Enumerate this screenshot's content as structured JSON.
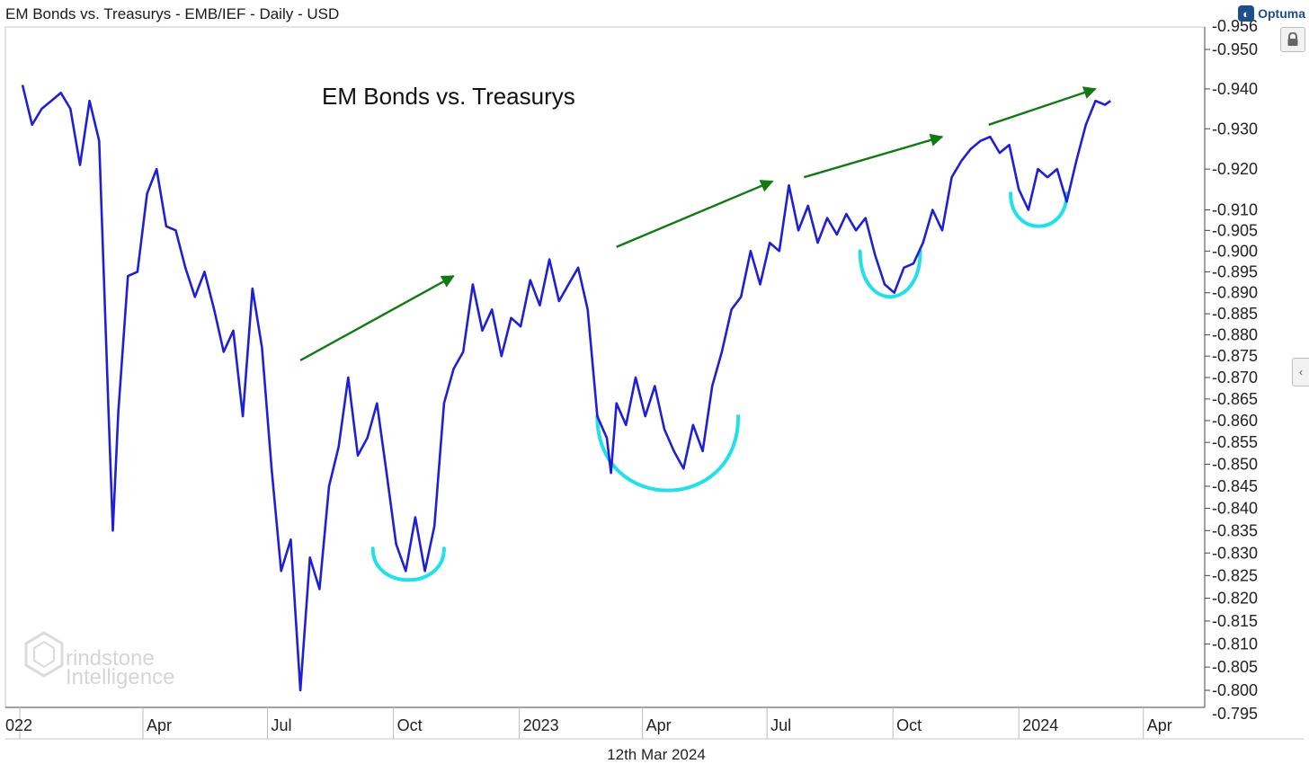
{
  "header": {
    "title": "EM Bonds vs. Treasurys - EMB/IEF - Daily - USD",
    "brand": "Optuma"
  },
  "footer": {
    "date": "12th Mar 2024"
  },
  "watermark": {
    "line1": "rindstone",
    "line2": "Intelligence"
  },
  "colors": {
    "line": "#1f1fd6",
    "arrow": "#137a13",
    "arc": "#22e0ea",
    "axis": "#444444",
    "grid": "#e6e6e6"
  },
  "icons": {
    "lock": "lock-icon",
    "collapse": "chevron-left-icon",
    "brand": "optuma-logo-icon"
  },
  "chart_data": {
    "type": "line",
    "title": "EM Bonds vs. Treasurys",
    "yscale": "log",
    "ylim": [
      0.795,
      0.956
    ],
    "xlim": [
      "2022-01-01",
      "2024-04-30"
    ],
    "x_tick_labels": [
      "022",
      "Apr",
      "Jul",
      "Oct",
      "2023",
      "Apr",
      "Jul",
      "Oct",
      "2024",
      "Apr"
    ],
    "y_tick_labels": [
      "0.956",
      "0.950",
      "0.940",
      "0.930",
      "0.920",
      "0.910",
      "0.905",
      "0.900",
      "0.895",
      "0.890",
      "0.885",
      "0.880",
      "0.875",
      "0.870",
      "0.865",
      "0.860",
      "0.855",
      "0.850",
      "0.845",
      "0.840",
      "0.835",
      "0.830",
      "0.825",
      "0.820",
      "0.815",
      "0.810",
      "0.805",
      "0.800",
      "0.795"
    ],
    "y_ticks": [
      0.95,
      0.94,
      0.93,
      0.92,
      0.91,
      0.905,
      0.9,
      0.895,
      0.89,
      0.885,
      0.88,
      0.875,
      0.87,
      0.865,
      0.86,
      0.855,
      0.85,
      0.845,
      0.84,
      0.835,
      0.83,
      0.825,
      0.82,
      0.815,
      0.81,
      0.805,
      0.8
    ],
    "series": [
      {
        "points": [
          [
            "2022-01-03",
            0.941
          ],
          [
            "2022-01-10",
            0.931
          ],
          [
            "2022-01-17",
            0.935
          ],
          [
            "2022-01-24",
            0.937
          ],
          [
            "2022-01-31",
            0.939
          ],
          [
            "2022-02-07",
            0.935
          ],
          [
            "2022-02-14",
            0.921
          ],
          [
            "2022-02-21",
            0.937
          ],
          [
            "2022-02-28",
            0.927
          ],
          [
            "2022-03-07",
            0.861
          ],
          [
            "2022-03-10",
            0.835
          ],
          [
            "2022-03-14",
            0.862
          ],
          [
            "2022-03-21",
            0.894
          ],
          [
            "2022-03-28",
            0.895
          ],
          [
            "2022-04-04",
            0.914
          ],
          [
            "2022-04-11",
            0.92
          ],
          [
            "2022-04-18",
            0.906
          ],
          [
            "2022-04-25",
            0.905
          ],
          [
            "2022-05-02",
            0.896
          ],
          [
            "2022-05-09",
            0.889
          ],
          [
            "2022-05-16",
            0.895
          ],
          [
            "2022-05-23",
            0.886
          ],
          [
            "2022-05-30",
            0.876
          ],
          [
            "2022-06-06",
            0.881
          ],
          [
            "2022-06-13",
            0.861
          ],
          [
            "2022-06-20",
            0.891
          ],
          [
            "2022-06-27",
            0.877
          ],
          [
            "2022-07-04",
            0.849
          ],
          [
            "2022-07-11",
            0.826
          ],
          [
            "2022-07-18",
            0.833
          ],
          [
            "2022-07-25",
            0.8
          ],
          [
            "2022-08-01",
            0.829
          ],
          [
            "2022-08-08",
            0.822
          ],
          [
            "2022-08-15",
            0.845
          ],
          [
            "2022-08-22",
            0.854
          ],
          [
            "2022-08-29",
            0.87
          ],
          [
            "2022-09-05",
            0.852
          ],
          [
            "2022-09-12",
            0.856
          ],
          [
            "2022-09-19",
            0.864
          ],
          [
            "2022-09-26",
            0.848
          ],
          [
            "2022-10-03",
            0.832
          ],
          [
            "2022-10-10",
            0.826
          ],
          [
            "2022-10-17",
            0.838
          ],
          [
            "2022-10-24",
            0.826
          ],
          [
            "2022-10-31",
            0.836
          ],
          [
            "2022-11-07",
            0.864
          ],
          [
            "2022-11-14",
            0.872
          ],
          [
            "2022-11-21",
            0.876
          ],
          [
            "2022-11-28",
            0.892
          ],
          [
            "2022-12-05",
            0.881
          ],
          [
            "2022-12-12",
            0.886
          ],
          [
            "2022-12-19",
            0.875
          ],
          [
            "2022-12-26",
            0.884
          ],
          [
            "2023-01-02",
            0.882
          ],
          [
            "2023-01-09",
            0.893
          ],
          [
            "2023-01-16",
            0.887
          ],
          [
            "2023-01-23",
            0.898
          ],
          [
            "2023-01-30",
            0.888
          ],
          [
            "2023-02-06",
            0.892
          ],
          [
            "2023-02-13",
            0.896
          ],
          [
            "2023-02-20",
            0.886
          ],
          [
            "2023-02-27",
            0.861
          ],
          [
            "2023-03-06",
            0.856
          ],
          [
            "2023-03-09",
            0.848
          ],
          [
            "2023-03-13",
            0.864
          ],
          [
            "2023-03-20",
            0.859
          ],
          [
            "2023-03-27",
            0.87
          ],
          [
            "2023-04-03",
            0.861
          ],
          [
            "2023-04-10",
            0.868
          ],
          [
            "2023-04-17",
            0.858
          ],
          [
            "2023-04-24",
            0.853
          ],
          [
            "2023-05-01",
            0.849
          ],
          [
            "2023-05-08",
            0.859
          ],
          [
            "2023-05-15",
            0.853
          ],
          [
            "2023-05-22",
            0.868
          ],
          [
            "2023-05-29",
            0.876
          ],
          [
            "2023-06-05",
            0.886
          ],
          [
            "2023-06-12",
            0.889
          ],
          [
            "2023-06-19",
            0.9
          ],
          [
            "2023-06-26",
            0.892
          ],
          [
            "2023-07-03",
            0.902
          ],
          [
            "2023-07-10",
            0.9
          ],
          [
            "2023-07-17",
            0.916
          ],
          [
            "2023-07-24",
            0.905
          ],
          [
            "2023-07-31",
            0.911
          ],
          [
            "2023-08-07",
            0.902
          ],
          [
            "2023-08-14",
            0.908
          ],
          [
            "2023-08-21",
            0.904
          ],
          [
            "2023-08-28",
            0.909
          ],
          [
            "2023-09-04",
            0.905
          ],
          [
            "2023-09-11",
            0.908
          ],
          [
            "2023-09-18",
            0.899
          ],
          [
            "2023-09-25",
            0.892
          ],
          [
            "2023-10-02",
            0.89
          ],
          [
            "2023-10-09",
            0.896
          ],
          [
            "2023-10-16",
            0.897
          ],
          [
            "2023-10-23",
            0.902
          ],
          [
            "2023-10-30",
            0.91
          ],
          [
            "2023-11-06",
            0.905
          ],
          [
            "2023-11-13",
            0.918
          ],
          [
            "2023-11-20",
            0.922
          ],
          [
            "2023-11-27",
            0.925
          ],
          [
            "2023-12-04",
            0.927
          ],
          [
            "2023-12-11",
            0.928
          ],
          [
            "2023-12-18",
            0.924
          ],
          [
            "2023-12-25",
            0.926
          ],
          [
            "2024-01-01",
            0.915
          ],
          [
            "2024-01-08",
            0.91
          ],
          [
            "2024-01-15",
            0.92
          ],
          [
            "2024-01-22",
            0.918
          ],
          [
            "2024-01-29",
            0.92
          ],
          [
            "2024-02-05",
            0.912
          ],
          [
            "2024-02-12",
            0.922
          ],
          [
            "2024-02-19",
            0.931
          ],
          [
            "2024-02-26",
            0.937
          ],
          [
            "2024-03-04",
            0.936
          ],
          [
            "2024-03-08",
            0.937
          ]
        ]
      }
    ],
    "annotations": {
      "arrows": [
        {
          "from": [
            "2022-07-25",
            0.874
          ],
          "to": [
            "2022-11-14",
            0.894
          ]
        },
        {
          "from": [
            "2023-03-13",
            0.901
          ],
          "to": [
            "2023-07-05",
            0.917
          ]
        },
        {
          "from": [
            "2023-07-28",
            0.918
          ],
          "to": [
            "2023-11-06",
            0.928
          ]
        },
        {
          "from": [
            "2023-12-10",
            0.931
          ],
          "to": [
            "2024-02-26",
            0.94
          ]
        }
      ],
      "arcs": [
        {
          "x0": "2022-09-16",
          "x1": "2022-11-07",
          "top": 0.831,
          "bottom": 0.824
        },
        {
          "x0": "2023-02-27",
          "x1": "2023-06-10",
          "top": 0.861,
          "bottom": 0.844
        },
        {
          "x0": "2023-09-07",
          "x1": "2023-10-21",
          "top": 0.9,
          "bottom": 0.889
        },
        {
          "x0": "2023-12-26",
          "x1": "2024-02-05",
          "top": 0.914,
          "bottom": 0.906
        }
      ]
    }
  }
}
